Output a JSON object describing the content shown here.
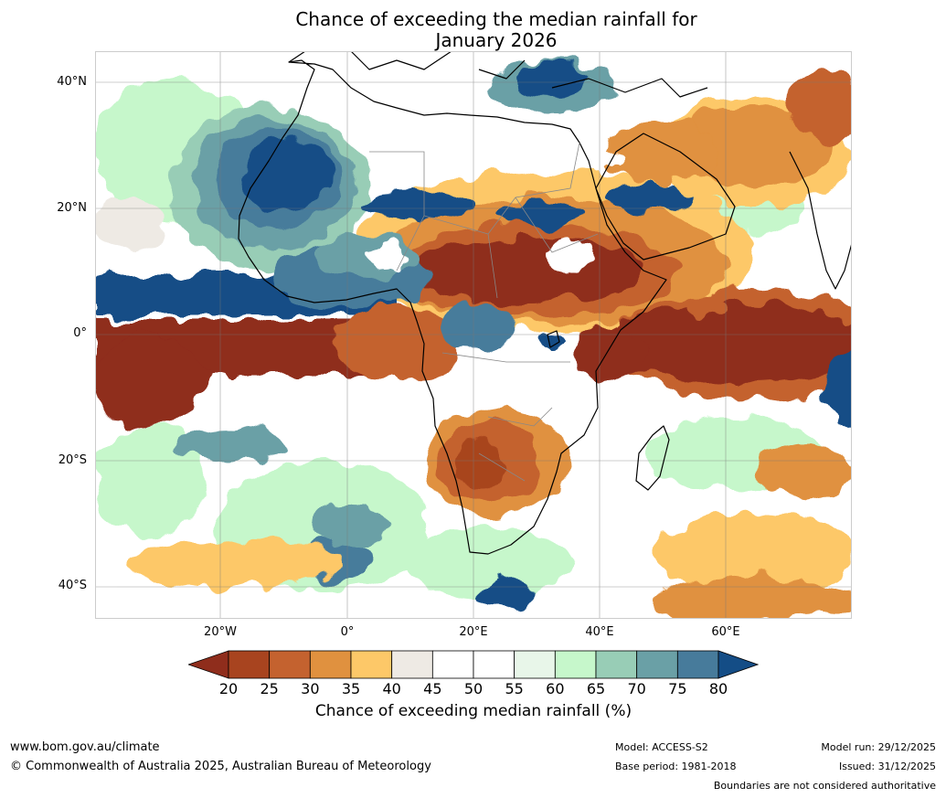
{
  "title": {
    "line1": "Chance of exceeding the median rainfall for",
    "line2": "January 2026"
  },
  "map": {
    "lat_labels": [
      "40°N",
      "20°N",
      "0°",
      "20°S",
      "40°S"
    ],
    "lon_labels": [
      "20°W",
      "0°",
      "20°E",
      "40°E",
      "60°E"
    ]
  },
  "colorbar": {
    "ticks": [
      "20",
      "25",
      "30",
      "35",
      "40",
      "45",
      "50",
      "55",
      "60",
      "65",
      "70",
      "75",
      "80"
    ],
    "colors": [
      "#8f2d1c",
      "#a8441f",
      "#c4622f",
      "#e0913f",
      "#fdc868",
      "#eeeae4",
      "#ffffff",
      "#ffffff",
      "#e8f6e9",
      "#c6f7cb",
      "#98cdb6",
      "#6aa0a6",
      "#477b9b",
      "#144d86"
    ],
    "label": "Chance of exceeding median rainfall (%)"
  },
  "footer": {
    "website": "www.bom.gov.au/climate",
    "copyright": "© Commonwealth of Australia 2025, Australian Bureau of Meteorology",
    "model": "Model: ACCESS-S2",
    "base_period": "Base period: 1981-2018",
    "model_run": "Model run: 29/12/2025",
    "issued": "Issued: 31/12/2025",
    "disclaimer": "Boundaries are not considered authoritative"
  }
}
